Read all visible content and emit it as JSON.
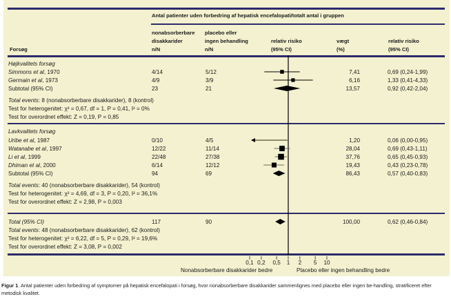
{
  "header": {
    "group_title": "Antal patienter uden forbedring af hepatisk encefalopati/totalt antal i gruppen",
    "col_study": "Forsøg",
    "col_treat_l1": "nonabsorberbare",
    "col_treat_l2": "disakkarider",
    "col_treat_l3": "n/N",
    "col_ctrl_l1": "placebo eller",
    "col_ctrl_l2": "ingen behandling",
    "col_ctrl_l3": "n/N",
    "col_rr_l1": "relativ risiko",
    "col_rr_l2": "(95% CI)",
    "col_weight_l1": "vægt",
    "col_weight_l2": "(%)",
    "col_rrtext_l1": "relativ risiko",
    "col_rrtext_l2": "(95% CI)"
  },
  "groups": [
    {
      "title": "Højkvalitets forsøg",
      "studies": [
        {
          "name": "Simmons et al",
          "year": ", 1970",
          "treat": "4/14",
          "ctrl": "5/12",
          "weight": "7,41",
          "rr_text": "0,69 (0,24-1,99)"
        },
        {
          "name": "Germain et al",
          "year": ", 1973",
          "treat": "4/9",
          "ctrl": "3/9",
          "weight": "6,16",
          "rr_text": "1,33 (0,41-4,33)"
        }
      ],
      "subtotal": {
        "label": "Subtotal (95% CI)",
        "treat": "23",
        "ctrl": "21",
        "weight": "13,57",
        "rr_text": "0,92 (0,42-2,04)"
      },
      "events_label": "Total events",
      "events_text": ": 8 (nonabsorberbare disakkarider), 8 (kontrol)",
      "heterogeneity": "Test for heterogenitet: χ² = 0,67, df = 1, P = 0,41, I² = 0%",
      "overall": "Test for overordnet effekt: Z = 0,19, P = 0,85"
    },
    {
      "title": "Lavkvalitets forsøg",
      "studies": [
        {
          "name": "Uribe et al",
          "year": ", 1987",
          "treat": "0/10",
          "ctrl": "4/5",
          "weight": "1,20",
          "rr_text": "0,06 (0,00-0,95)"
        },
        {
          "name": "Watanabe et al",
          "year": ", 1997",
          "treat": "12/22",
          "ctrl": "11/14",
          "weight": "28,04",
          "rr_text": "0,69 (0,43-1,11)"
        },
        {
          "name": "Li et al",
          "year": ", 1999",
          "treat": "22/48",
          "ctrl": "27/38",
          "weight": "37,76",
          "rr_text": "0,65 (0,45-0,93)"
        },
        {
          "name": "Dhiman et al",
          "year": ", 2000",
          "treat": "6/14",
          "ctrl": "12/12",
          "weight": "19,43",
          "rr_text": "0,43 (0,23-0,78)"
        }
      ],
      "subtotal": {
        "label": "Subtotal (95% CI)",
        "treat": "94",
        "ctrl": "69",
        "weight": "86,43",
        "rr_text": "0,57 (0,40-0,83)"
      },
      "events_label": "Total events",
      "events_text": ": 40 (nonabsorberbare disakkarider), 54 (kontrol)",
      "heterogeneity": "Test for heterogenitet: χ² = 4,69, df = 3, P = 0,20, I² = 36,1%",
      "overall": "Test for overordnet effekt: Z = 2,98, P = 0,003"
    }
  ],
  "total": {
    "label": "Total (95% CI)",
    "treat": "117",
    "ctrl": "90",
    "weight": "100,00",
    "rr_text": "0,62 (0,46-0,84)",
    "events_label": "Total events",
    "events_text": ": 48 (nonabsorberbare disakkarider), 62 (kontrol)",
    "heterogeneity": "Test for heterogenitet: χ² = 6,22, df = 5, P = 0,29, I² = 19,6%",
    "overall": "Test for overordnet effekt: Z = 3,08, P = 0,002"
  },
  "axis": {
    "ticks": [
      "0,1",
      "0,2",
      "0,5",
      "1",
      "2",
      "5",
      "10"
    ],
    "left_label": "Nonabsorberbare disakkarider bedre",
    "right_label": "Placebo eller ingen behandling bedre"
  },
  "caption": {
    "label": "Figur 1",
    "text": ". Antal patienter uden forbedring af symptomer på hepatisk encefalopati i forsøg, hvor nonabsorberbare disakkarider sammenlignes med placebo eller ingen be-handling, stratificeret efter metodisk kvalitet."
  },
  "colors": {
    "rule": "#2b2a6b",
    "panel": "#f3f1cf",
    "marker": "#000000"
  },
  "chart_data": {
    "type": "forest",
    "scale": "log",
    "xlim": [
      0.1,
      10
    ],
    "x_ticks": [
      0.1,
      0.2,
      0.5,
      1,
      2,
      5,
      10
    ],
    "reference_line": 1,
    "xlabel_left": "Nonabsorberbare disakkarider bedre",
    "xlabel_right": "Placebo eller ingen behandling bedre",
    "rows": [
      {
        "label": "Simmons et al, 1970",
        "kind": "study",
        "rr": 0.69,
        "lo": 0.24,
        "hi": 1.99,
        "weight": 7.41
      },
      {
        "label": "Germain et al, 1973",
        "kind": "study",
        "rr": 1.33,
        "lo": 0.41,
        "hi": 4.33,
        "weight": 6.16
      },
      {
        "label": "Subtotal (95% CI)",
        "kind": "subtotal",
        "rr": 0.92,
        "lo": 0.42,
        "hi": 2.04,
        "weight": 13.57
      },
      {
        "label": "Uribe et al, 1987",
        "kind": "study",
        "rr": 0.06,
        "lo": 0.0,
        "hi": 0.95,
        "weight": 1.2
      },
      {
        "label": "Watanabe et al, 1997",
        "kind": "study",
        "rr": 0.69,
        "lo": 0.43,
        "hi": 1.11,
        "weight": 28.04
      },
      {
        "label": "Li et al, 1999",
        "kind": "study",
        "rr": 0.65,
        "lo": 0.45,
        "hi": 0.93,
        "weight": 37.76
      },
      {
        "label": "Dhiman et al, 2000",
        "kind": "study",
        "rr": 0.43,
        "lo": 0.23,
        "hi": 0.78,
        "weight": 19.43
      },
      {
        "label": "Subtotal (95% CI)",
        "kind": "subtotal",
        "rr": 0.57,
        "lo": 0.4,
        "hi": 0.83,
        "weight": 86.43
      },
      {
        "label": "Total (95% CI)",
        "kind": "total",
        "rr": 0.62,
        "lo": 0.46,
        "hi": 0.84,
        "weight": 100.0
      }
    ]
  }
}
